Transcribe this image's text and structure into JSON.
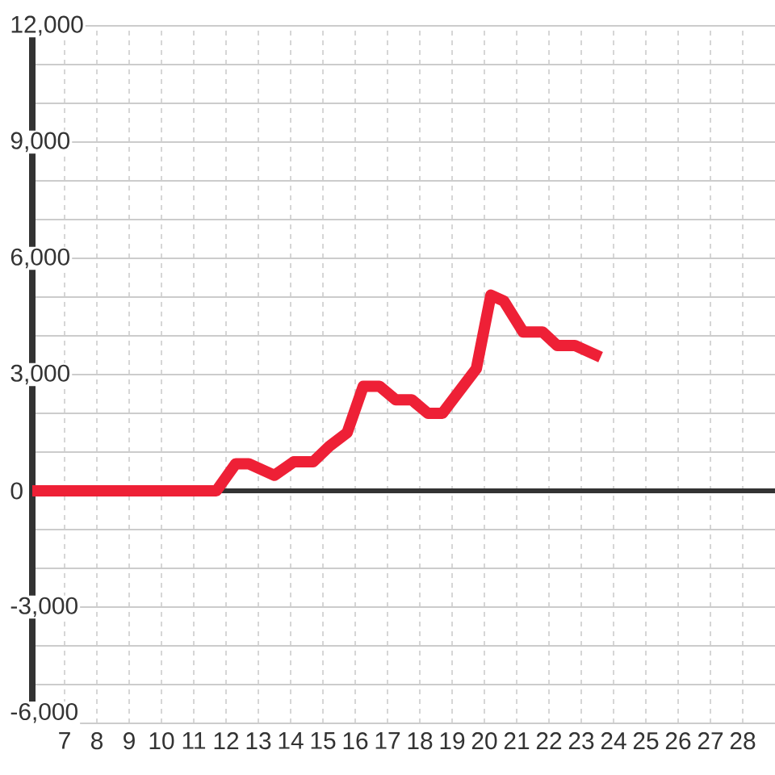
{
  "chart_data": {
    "type": "line",
    "x": [
      6,
      11.7,
      12.3,
      12.7,
      13.5,
      14.1,
      14.7,
      15.2,
      15.75,
      16.25,
      16.75,
      17.25,
      17.75,
      18.25,
      18.7,
      19.75,
      20.2,
      20.6,
      21.2,
      21.8,
      22.25,
      22.8,
      23.6
    ],
    "values": [
      0,
      0,
      700,
      700,
      400,
      750,
      750,
      1150,
      1500,
      2700,
      2700,
      2350,
      2350,
      2000,
      2000,
      3150,
      5050,
      4900,
      4100,
      4100,
      3750,
      3750,
      3450
    ],
    "color": "#ee2036",
    "line_style": "solid",
    "xlim": [
      6,
      29
    ],
    "ylim": [
      -6000,
      12000
    ],
    "xticks": [
      7,
      8,
      9,
      10,
      11,
      12,
      13,
      14,
      15,
      16,
      17,
      18,
      19,
      20,
      21,
      22,
      23,
      24,
      25,
      26,
      27,
      28
    ],
    "yticks": [
      {
        "value": -6000,
        "label": "-6,000"
      },
      {
        "value": -5000,
        "label": null
      },
      {
        "value": -4000,
        "label": null
      },
      {
        "value": -3000,
        "label": "-3,000"
      },
      {
        "value": -2000,
        "label": null
      },
      {
        "value": -1000,
        "label": null
      },
      0,
      {
        "value": 1000,
        "label": null
      },
      {
        "value": 2000,
        "label": null
      },
      {
        "value": 3000,
        "label": "3,000"
      },
      {
        "value": 4000,
        "label": null
      },
      {
        "value": 5000,
        "label": null
      },
      {
        "value": 6000,
        "label": "6,000"
      },
      {
        "value": 7000,
        "label": null
      },
      {
        "value": 8000,
        "label": null
      },
      {
        "value": 9000,
        "label": "9,000"
      },
      {
        "value": 10000,
        "label": null
      },
      {
        "value": 11000,
        "label": null
      },
      {
        "value": 12000,
        "label": "12,000"
      }
    ],
    "grid": true,
    "ref_lines": [
      {
        "axis": "y",
        "value": 0,
        "color": "#333333"
      }
    ]
  }
}
